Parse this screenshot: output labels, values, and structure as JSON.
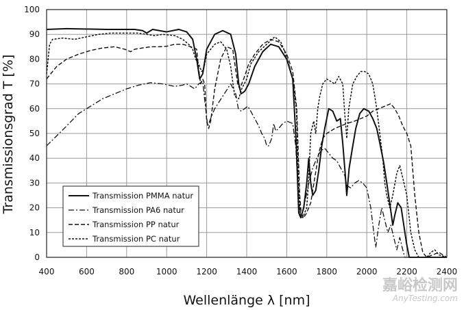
{
  "chart_data": {
    "type": "line",
    "title": "",
    "xlabel": "Wellenlänge λ [nm]",
    "ylabel": "Transmissionsgrad T [%]",
    "xlim": [
      400,
      2400
    ],
    "ylim": [
      0,
      100
    ],
    "xticks": [
      400,
      600,
      800,
      1000,
      1200,
      1400,
      1600,
      1800,
      2000,
      2200,
      2400
    ],
    "yticks": [
      0,
      10,
      20,
      30,
      40,
      50,
      60,
      70,
      80,
      90,
      100
    ],
    "grid": true,
    "legend_position": "bottom-left",
    "series": [
      {
        "name": "Transmission PMMA natur",
        "dash": "solid",
        "points": [
          [
            400,
            92
          ],
          [
            500,
            92.3
          ],
          [
            700,
            92
          ],
          [
            840,
            92
          ],
          [
            880,
            91.5
          ],
          [
            900,
            90.5
          ],
          [
            930,
            92
          ],
          [
            1000,
            91
          ],
          [
            1060,
            92
          ],
          [
            1100,
            91
          ],
          [
            1130,
            88
          ],
          [
            1150,
            80
          ],
          [
            1165,
            72
          ],
          [
            1180,
            74
          ],
          [
            1200,
            84
          ],
          [
            1240,
            90
          ],
          [
            1280,
            91.5
          ],
          [
            1320,
            90
          ],
          [
            1345,
            82
          ],
          [
            1360,
            70
          ],
          [
            1372,
            66
          ],
          [
            1390,
            67
          ],
          [
            1410,
            70
          ],
          [
            1440,
            77
          ],
          [
            1480,
            83
          ],
          [
            1520,
            86
          ],
          [
            1560,
            85
          ],
          [
            1600,
            80
          ],
          [
            1630,
            72
          ],
          [
            1648,
            45
          ],
          [
            1660,
            18
          ],
          [
            1670,
            16
          ],
          [
            1685,
            20
          ],
          [
            1700,
            30
          ],
          [
            1710,
            40
          ],
          [
            1720,
            30
          ],
          [
            1730,
            25
          ],
          [
            1745,
            27
          ],
          [
            1760,
            35
          ],
          [
            1775,
            45
          ],
          [
            1790,
            52
          ],
          [
            1810,
            60
          ],
          [
            1830,
            59
          ],
          [
            1850,
            55
          ],
          [
            1868,
            56
          ],
          [
            1880,
            46
          ],
          [
            1892,
            34
          ],
          [
            1900,
            25
          ],
          [
            1912,
            36
          ],
          [
            1928,
            44
          ],
          [
            1945,
            52
          ],
          [
            1965,
            58
          ],
          [
            1985,
            60
          ],
          [
            2010,
            59
          ],
          [
            2030,
            56
          ],
          [
            2050,
            52
          ],
          [
            2068,
            45
          ],
          [
            2085,
            38
          ],
          [
            2100,
            30
          ],
          [
            2118,
            20
          ],
          [
            2130,
            13
          ],
          [
            2140,
            17
          ],
          [
            2155,
            22
          ],
          [
            2172,
            20
          ],
          [
            2185,
            13
          ],
          [
            2198,
            6
          ],
          [
            2212,
            0
          ],
          [
            2400,
            0
          ]
        ]
      },
      {
        "name": "Transmission PA6 natur",
        "dash": "dashdot",
        "points": [
          [
            400,
            45
          ],
          [
            450,
            49
          ],
          [
            500,
            53
          ],
          [
            560,
            58
          ],
          [
            620,
            61
          ],
          [
            680,
            64
          ],
          [
            740,
            66
          ],
          [
            800,
            68
          ],
          [
            860,
            69.5
          ],
          [
            920,
            70.5
          ],
          [
            980,
            70
          ],
          [
            1040,
            69
          ],
          [
            1080,
            69.5
          ],
          [
            1100,
            70
          ],
          [
            1120,
            69
          ],
          [
            1140,
            68
          ],
          [
            1160,
            70
          ],
          [
            1180,
            71
          ],
          [
            1195,
            60
          ],
          [
            1205,
            53
          ],
          [
            1215,
            55
          ],
          [
            1240,
            60
          ],
          [
            1280,
            65
          ],
          [
            1320,
            70
          ],
          [
            1345,
            66
          ],
          [
            1358,
            60
          ],
          [
            1372,
            59
          ],
          [
            1390,
            60
          ],
          [
            1405,
            61
          ],
          [
            1420,
            59
          ],
          [
            1440,
            56
          ],
          [
            1460,
            53
          ],
          [
            1475,
            50
          ],
          [
            1490,
            48
          ],
          [
            1500,
            45
          ],
          [
            1510,
            45
          ],
          [
            1525,
            48
          ],
          [
            1535,
            54
          ],
          [
            1545,
            51
          ],
          [
            1560,
            52
          ],
          [
            1580,
            54
          ],
          [
            1600,
            55
          ],
          [
            1630,
            54
          ],
          [
            1645,
            45
          ],
          [
            1660,
            22
          ],
          [
            1672,
            16
          ],
          [
            1690,
            22
          ],
          [
            1710,
            30
          ],
          [
            1730,
            36
          ],
          [
            1750,
            40
          ],
          [
            1770,
            43
          ],
          [
            1790,
            44
          ],
          [
            1810,
            42
          ],
          [
            1830,
            40
          ],
          [
            1850,
            39
          ],
          [
            1870,
            36
          ],
          [
            1890,
            33
          ],
          [
            1900,
            29
          ],
          [
            1920,
            28
          ],
          [
            1940,
            30
          ],
          [
            1960,
            31
          ],
          [
            1980,
            30
          ],
          [
            2000,
            28
          ],
          [
            2020,
            20
          ],
          [
            2035,
            10
          ],
          [
            2045,
            4
          ],
          [
            2060,
            13
          ],
          [
            2075,
            20
          ],
          [
            2090,
            15
          ],
          [
            2105,
            10
          ],
          [
            2120,
            13
          ],
          [
            2135,
            8
          ],
          [
            2150,
            3
          ],
          [
            2165,
            8
          ],
          [
            2180,
            3
          ],
          [
            2190,
            0
          ],
          [
            2400,
            0
          ]
        ]
      },
      {
        "name": "Transmission PP natur",
        "dash": "dashed",
        "points": [
          [
            400,
            72
          ],
          [
            450,
            77
          ],
          [
            500,
            80
          ],
          [
            560,
            82
          ],
          [
            620,
            83.5
          ],
          [
            680,
            84.5
          ],
          [
            740,
            85
          ],
          [
            790,
            84
          ],
          [
            820,
            83
          ],
          [
            840,
            84
          ],
          [
            880,
            84.5
          ],
          [
            920,
            85
          ],
          [
            960,
            85
          ],
          [
            1000,
            85.2
          ],
          [
            1040,
            86
          ],
          [
            1080,
            86
          ],
          [
            1120,
            85
          ],
          [
            1150,
            84
          ],
          [
            1160,
            76
          ],
          [
            1170,
            70
          ],
          [
            1180,
            72
          ],
          [
            1190,
            70
          ],
          [
            1200,
            55
          ],
          [
            1210,
            52
          ],
          [
            1220,
            55
          ],
          [
            1240,
            68
          ],
          [
            1270,
            80
          ],
          [
            1300,
            85
          ],
          [
            1330,
            84
          ],
          [
            1355,
            70
          ],
          [
            1365,
            68
          ],
          [
            1385,
            72
          ],
          [
            1410,
            78
          ],
          [
            1440,
            82
          ],
          [
            1480,
            86
          ],
          [
            1520,
            88
          ],
          [
            1560,
            87
          ],
          [
            1600,
            82
          ],
          [
            1630,
            75
          ],
          [
            1650,
            60
          ],
          [
            1665,
            25
          ],
          [
            1672,
            18
          ],
          [
            1685,
            16
          ],
          [
            1700,
            18
          ],
          [
            1720,
            22
          ],
          [
            1740,
            32
          ],
          [
            1760,
            42
          ],
          [
            1780,
            48
          ],
          [
            1800,
            50
          ],
          [
            1820,
            51
          ],
          [
            1840,
            52
          ],
          [
            1870,
            53
          ],
          [
            1900,
            54
          ],
          [
            1940,
            55
          ],
          [
            1970,
            56
          ],
          [
            2000,
            57
          ],
          [
            2030,
            59
          ],
          [
            2060,
            60
          ],
          [
            2090,
            61
          ],
          [
            2120,
            62
          ],
          [
            2140,
            60
          ],
          [
            2160,
            57
          ],
          [
            2180,
            53
          ],
          [
            2200,
            50
          ],
          [
            2220,
            45
          ],
          [
            2240,
            25
          ],
          [
            2260,
            10
          ],
          [
            2280,
            2
          ],
          [
            2300,
            0
          ],
          [
            2330,
            1
          ],
          [
            2360,
            2
          ],
          [
            2400,
            0
          ]
        ]
      },
      {
        "name": "Transmission PC natur",
        "dash": "dotted",
        "points": [
          [
            400,
            74
          ],
          [
            415,
            86
          ],
          [
            430,
            88
          ],
          [
            480,
            88.5
          ],
          [
            540,
            88
          ],
          [
            600,
            89
          ],
          [
            660,
            90
          ],
          [
            720,
            90.5
          ],
          [
            800,
            90.5
          ],
          [
            860,
            90.5
          ],
          [
            900,
            90
          ],
          [
            940,
            89.5
          ],
          [
            980,
            90
          ],
          [
            1040,
            89.5
          ],
          [
            1080,
            88
          ],
          [
            1110,
            86
          ],
          [
            1130,
            84
          ],
          [
            1145,
            80
          ],
          [
            1160,
            78
          ],
          [
            1175,
            75
          ],
          [
            1185,
            76
          ],
          [
            1200,
            82
          ],
          [
            1240,
            86
          ],
          [
            1270,
            87
          ],
          [
            1300,
            84
          ],
          [
            1320,
            77
          ],
          [
            1340,
            65
          ],
          [
            1360,
            64
          ],
          [
            1375,
            68
          ],
          [
            1400,
            72
          ],
          [
            1420,
            78
          ],
          [
            1460,
            83
          ],
          [
            1500,
            86
          ],
          [
            1540,
            89
          ],
          [
            1570,
            87
          ],
          [
            1590,
            83
          ],
          [
            1610,
            78
          ],
          [
            1630,
            72
          ],
          [
            1648,
            60
          ],
          [
            1660,
            28
          ],
          [
            1668,
            17
          ],
          [
            1680,
            16
          ],
          [
            1690,
            18
          ],
          [
            1700,
            20
          ],
          [
            1710,
            32
          ],
          [
            1720,
            50
          ],
          [
            1735,
            55
          ],
          [
            1745,
            50
          ],
          [
            1755,
            60
          ],
          [
            1765,
            65
          ],
          [
            1780,
            70
          ],
          [
            1800,
            72
          ],
          [
            1820,
            71
          ],
          [
            1840,
            70
          ],
          [
            1860,
            73
          ],
          [
            1880,
            70
          ],
          [
            1890,
            58
          ],
          [
            1900,
            48
          ],
          [
            1910,
            60
          ],
          [
            1930,
            70
          ],
          [
            1950,
            73
          ],
          [
            1970,
            75
          ],
          [
            1990,
            75
          ],
          [
            2010,
            74
          ],
          [
            2030,
            70
          ],
          [
            2050,
            60
          ],
          [
            2065,
            50
          ],
          [
            2080,
            40
          ],
          [
            2090,
            30
          ],
          [
            2100,
            25
          ],
          [
            2115,
            20
          ],
          [
            2130,
            25
          ],
          [
            2150,
            34
          ],
          [
            2165,
            37
          ],
          [
            2180,
            32
          ],
          [
            2200,
            25
          ],
          [
            2220,
            10
          ],
          [
            2240,
            3
          ],
          [
            2260,
            0
          ],
          [
            2300,
            0
          ],
          [
            2320,
            2
          ],
          [
            2340,
            3
          ],
          [
            2360,
            1
          ],
          [
            2400,
            0
          ]
        ]
      }
    ]
  },
  "watermark": {
    "cn": "嘉峪检测网",
    "en": "AnyTesting.com"
  }
}
